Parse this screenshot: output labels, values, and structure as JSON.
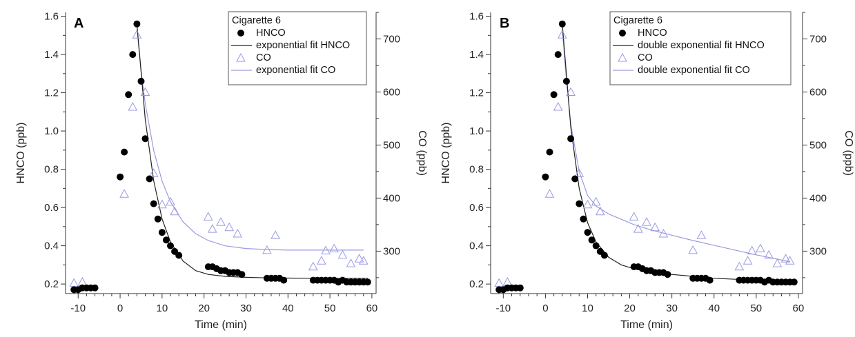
{
  "colors": {
    "hnco": "#000000",
    "co": "#9a9ae0",
    "fit_hnco": "#222222",
    "fit_co": "#9a9ae0",
    "axis": "#333333"
  },
  "chart_data": [
    {
      "type": "scatter",
      "panel_label": "A",
      "title": "",
      "xlabel": "Time (min)",
      "ylabel_left": "HNCO (ppb)",
      "ylabel_right": "CO (ppb)",
      "xlim": [
        -13,
        61
      ],
      "ylim_left": [
        0.15,
        1.62
      ],
      "ylim_right": [
        220,
        750
      ],
      "x_ticks": [
        -10,
        0,
        10,
        20,
        30,
        40,
        50,
        60
      ],
      "y_ticks_left": [
        0.2,
        0.4,
        0.6,
        0.8,
        1.0,
        1.2,
        1.4,
        1.6
      ],
      "y_ticks_right": [
        300,
        400,
        500,
        600,
        700
      ],
      "grid": false,
      "legend_position": "top-right",
      "legend_title": "Cigarette 6",
      "series": [
        {
          "name": "HNCO",
          "marker": "filled-circle",
          "axis": "left",
          "x": [
            -11,
            -10,
            -9,
            -8,
            -7,
            -6,
            0,
            1,
            2,
            3,
            4,
            5,
            6,
            7,
            8,
            9,
            10,
            11,
            12,
            13,
            14,
            21,
            22,
            23,
            24,
            25,
            26,
            27,
            28,
            29,
            35,
            36,
            37,
            38,
            39,
            46,
            47,
            48,
            49,
            50,
            51,
            52,
            53,
            54,
            55,
            56,
            57,
            58,
            59
          ],
          "y": [
            0.17,
            0.17,
            0.18,
            0.18,
            0.18,
            0.18,
            0.76,
            0.89,
            1.19,
            1.4,
            1.56,
            1.26,
            0.96,
            0.75,
            0.62,
            0.54,
            0.47,
            0.43,
            0.4,
            0.37,
            0.35,
            0.29,
            0.29,
            0.28,
            0.27,
            0.27,
            0.26,
            0.26,
            0.26,
            0.25,
            0.23,
            0.23,
            0.23,
            0.23,
            0.22,
            0.22,
            0.22,
            0.22,
            0.22,
            0.22,
            0.22,
            0.21,
            0.22,
            0.21,
            0.21,
            0.21,
            0.21,
            0.21,
            0.21
          ]
        },
        {
          "name": "exponential fit HNCO",
          "style": "line",
          "axis": "left",
          "x": [
            4,
            6,
            8,
            10,
            12,
            15,
            18,
            21,
            25,
            30,
            35,
            40,
            45,
            50,
            55,
            59
          ],
          "y": [
            1.56,
            1.06,
            0.74,
            0.54,
            0.42,
            0.32,
            0.27,
            0.25,
            0.24,
            0.235,
            0.232,
            0.231,
            0.23,
            0.23,
            0.23,
            0.23
          ]
        },
        {
          "name": "CO",
          "marker": "open-triangle",
          "axis": "right",
          "x": [
            -11,
            -9,
            1,
            3,
            4,
            6,
            8,
            10,
            12,
            13,
            21,
            22,
            24,
            26,
            28,
            35,
            37,
            46,
            48,
            49,
            51,
            53,
            55,
            57,
            58
          ],
          "y": [
            240,
            242,
            408,
            572,
            708,
            600,
            447,
            388,
            393,
            375,
            365,
            342,
            355,
            345,
            333,
            302,
            330,
            271,
            282,
            301,
            305,
            293,
            277,
            286,
            282
          ]
        },
        {
          "name": "exponential fit CO",
          "style": "line",
          "axis": "right",
          "x": [
            4,
            5,
            6,
            8,
            10,
            12,
            15,
            18,
            21,
            25,
            30,
            35,
            40,
            45,
            50,
            55,
            58
          ],
          "y": [
            718,
            640,
            578,
            490,
            432,
            393,
            355,
            333,
            320,
            310,
            305,
            303,
            302,
            302,
            302,
            302,
            302
          ]
        }
      ]
    },
    {
      "type": "scatter",
      "panel_label": "B",
      "title": "",
      "xlabel": "Time (min)",
      "ylabel_left": "HNCO (ppb)",
      "ylabel_right": "CO (ppb)",
      "xlim": [
        -13,
        61
      ],
      "ylim_left": [
        0.15,
        1.62
      ],
      "ylim_right": [
        220,
        750
      ],
      "x_ticks": [
        -10,
        0,
        10,
        20,
        30,
        40,
        50,
        60
      ],
      "y_ticks_left": [
        0.2,
        0.4,
        0.6,
        0.8,
        1.0,
        1.2,
        1.4,
        1.6
      ],
      "y_ticks_right": [
        300,
        400,
        500,
        600,
        700
      ],
      "grid": false,
      "legend_position": "top-right",
      "legend_title": "Cigarette 6",
      "series": [
        {
          "name": "HNCO",
          "marker": "filled-circle",
          "axis": "left",
          "x": [
            -11,
            -10,
            -9,
            -8,
            -7,
            -6,
            0,
            1,
            2,
            3,
            4,
            5,
            6,
            7,
            8,
            9,
            10,
            11,
            12,
            13,
            14,
            21,
            22,
            23,
            24,
            25,
            26,
            27,
            28,
            29,
            35,
            36,
            37,
            38,
            39,
            46,
            47,
            48,
            49,
            50,
            51,
            52,
            53,
            54,
            55,
            56,
            57,
            58,
            59
          ],
          "y": [
            0.17,
            0.17,
            0.18,
            0.18,
            0.18,
            0.18,
            0.76,
            0.89,
            1.19,
            1.4,
            1.56,
            1.26,
            0.96,
            0.75,
            0.62,
            0.54,
            0.47,
            0.43,
            0.4,
            0.37,
            0.35,
            0.29,
            0.29,
            0.28,
            0.27,
            0.27,
            0.26,
            0.26,
            0.26,
            0.25,
            0.23,
            0.23,
            0.23,
            0.23,
            0.22,
            0.22,
            0.22,
            0.22,
            0.22,
            0.22,
            0.22,
            0.21,
            0.22,
            0.21,
            0.21,
            0.21,
            0.21,
            0.21,
            0.21
          ]
        },
        {
          "name": "double exponential fit HNCO",
          "style": "line",
          "axis": "left",
          "x": [
            4,
            6,
            8,
            10,
            12,
            15,
            18,
            21,
            25,
            30,
            35,
            40,
            45,
            50,
            55,
            59
          ],
          "y": [
            1.56,
            1.02,
            0.7,
            0.52,
            0.42,
            0.34,
            0.3,
            0.28,
            0.265,
            0.25,
            0.24,
            0.23,
            0.225,
            0.22,
            0.215,
            0.21
          ]
        },
        {
          "name": "CO",
          "marker": "open-triangle",
          "axis": "right",
          "x": [
            -11,
            -9,
            1,
            3,
            4,
            6,
            8,
            10,
            12,
            13,
            21,
            22,
            24,
            26,
            28,
            35,
            37,
            46,
            48,
            49,
            51,
            53,
            55,
            57,
            58
          ],
          "y": [
            240,
            242,
            408,
            572,
            708,
            600,
            447,
            388,
            393,
            375,
            365,
            342,
            355,
            345,
            333,
            302,
            330,
            271,
            282,
            301,
            305,
            293,
            277,
            286,
            282
          ]
        },
        {
          "name": "double exponential fit CO",
          "style": "line",
          "axis": "right",
          "x": [
            4,
            5,
            6,
            8,
            10,
            12,
            15,
            18,
            21,
            25,
            30,
            35,
            40,
            45,
            50,
            55,
            58
          ],
          "y": [
            718,
            620,
            540,
            450,
            405,
            385,
            370,
            360,
            350,
            340,
            330,
            320,
            311,
            302,
            293,
            285,
            280
          ]
        }
      ]
    }
  ]
}
